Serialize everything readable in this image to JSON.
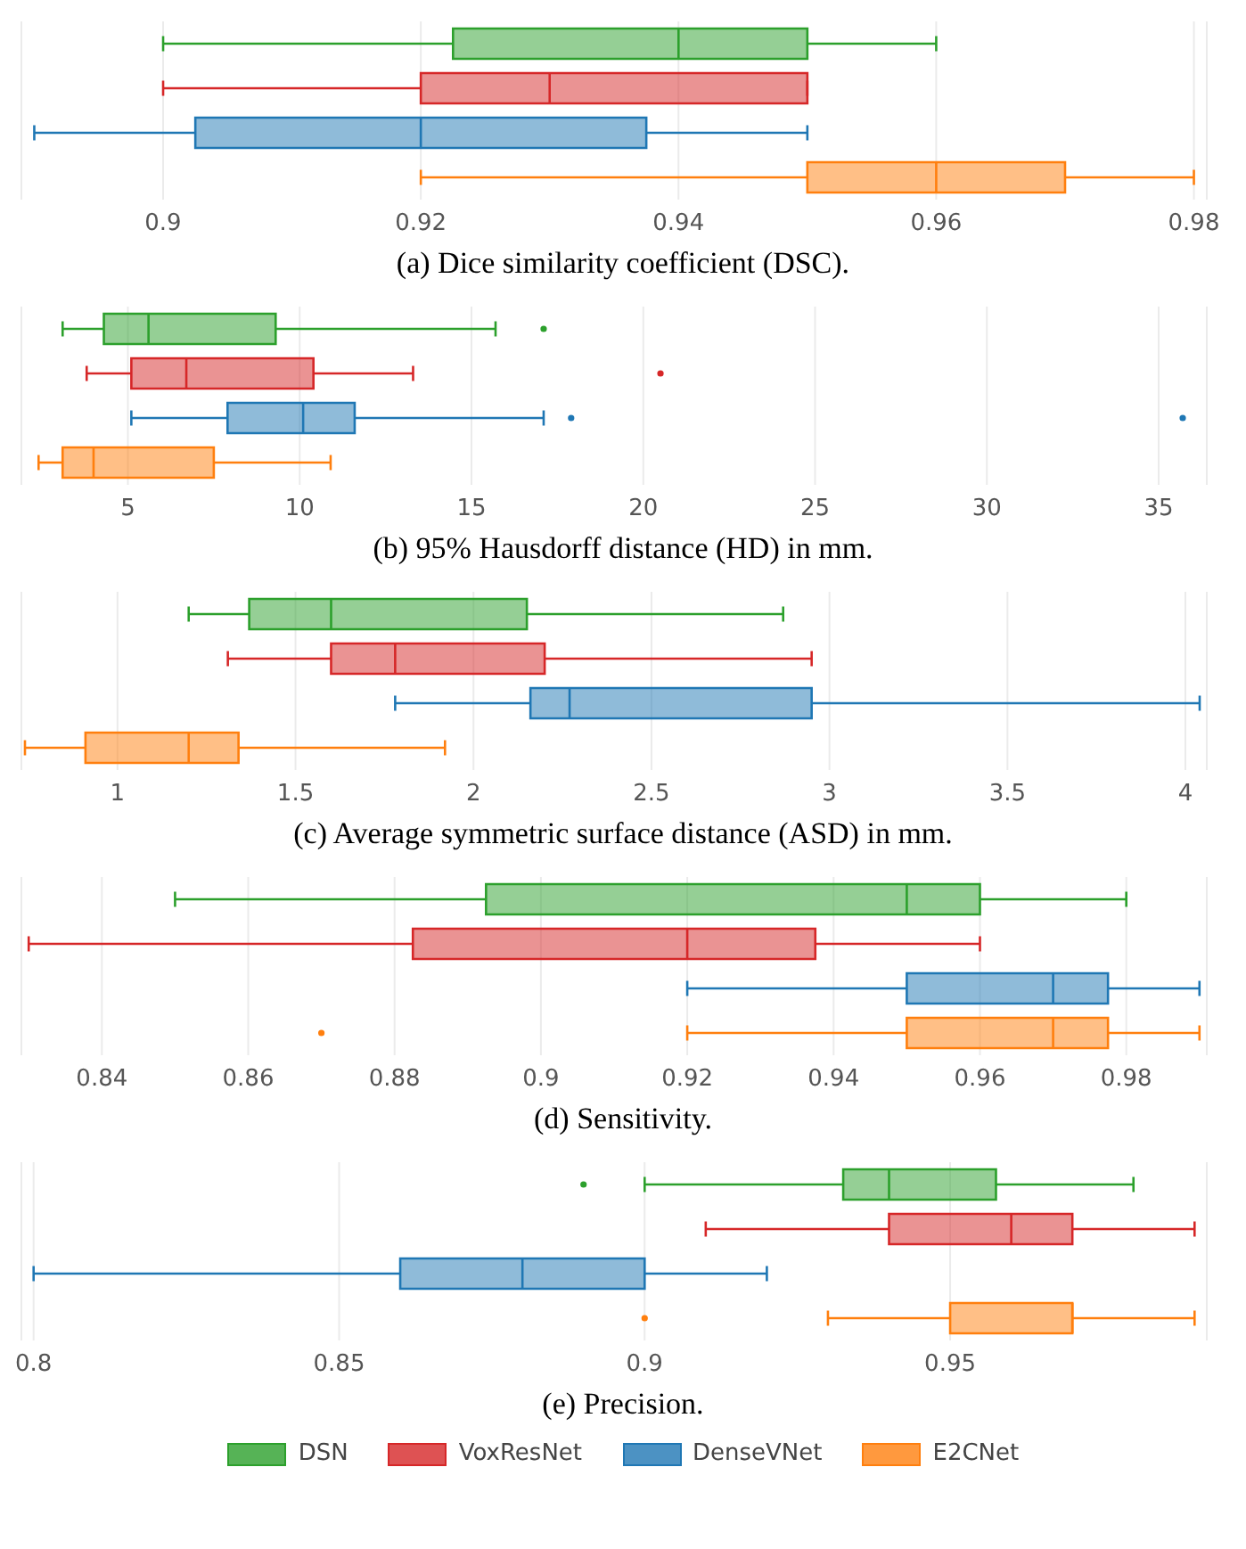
{
  "chart_data": [
    {
      "type": "box",
      "orientation": "horizontal",
      "categories": [
        null
      ],
      "annotations": [
        "(a) Dice similarity coefficient (DSC)."
      ],
      "xlim": [
        0.889,
        0.981
      ],
      "xticks": [
        0.9,
        0.92,
        0.94,
        0.96,
        0.98
      ],
      "grid": "x",
      "legend": false,
      "series": [
        {
          "color": "#2ca02c",
          "boxes": [
            {
              "low": 0.9,
              "q1": 0.9225,
              "median": 0.94,
              "q3": 0.95,
              "high": 0.96
            }
          ]
        },
        {
          "color": "#d62728",
          "boxes": [
            {
              "low": 0.9,
              "q1": 0.92,
              "median": 0.93,
              "q3": 0.95,
              "high": 0.95
            }
          ]
        },
        {
          "color": "#1f77b4",
          "boxes": [
            {
              "low": 0.89,
              "q1": 0.9025,
              "median": 0.92,
              "q3": 0.9375,
              "high": 0.95
            }
          ]
        },
        {
          "color": "#ff7f0e",
          "boxes": [
            {
              "low": 0.92,
              "q1": 0.95,
              "median": 0.96,
              "q3": 0.97,
              "high": 0.98
            }
          ]
        }
      ]
    },
    {
      "type": "box",
      "orientation": "horizontal",
      "categories": [
        null
      ],
      "annotations": [
        "(b) 95% Hausdorff distance (HD) in mm."
      ],
      "xlim": [
        1.9,
        36.4
      ],
      "xticks": [
        5,
        10,
        15,
        20,
        25,
        30,
        35
      ],
      "grid": "x",
      "legend": false,
      "series": [
        {
          "color": "#2ca02c",
          "boxes": [
            {
              "low": 3.1,
              "q1": 4.3,
              "median": 5.6,
              "q3": 9.3,
              "high": 15.7,
              "outliers": [
                17.1
              ]
            }
          ]
        },
        {
          "color": "#d62728",
          "boxes": [
            {
              "low": 3.8,
              "q1": 5.1,
              "median": 6.7,
              "q3": 10.4,
              "high": 13.3,
              "outliers": [
                20.5
              ]
            }
          ]
        },
        {
          "color": "#1f77b4",
          "boxes": [
            {
              "low": 5.1,
              "q1": 7.9,
              "median": 10.1,
              "q3": 11.6,
              "high": 17.1,
              "outliers": [
                17.9,
                35.7
              ]
            }
          ]
        },
        {
          "color": "#ff7f0e",
          "boxes": [
            {
              "low": 2.4,
              "q1": 3.1,
              "median": 4.0,
              "q3": 7.5,
              "high": 10.9
            }
          ]
        }
      ]
    },
    {
      "type": "box",
      "orientation": "horizontal",
      "categories": [
        null
      ],
      "annotations": [
        "(c) Average symmetric surface distance (ASD) in mm."
      ],
      "xlim": [
        0.73,
        4.06
      ],
      "xticks": [
        1,
        1.5,
        2,
        2.5,
        3,
        3.5,
        4
      ],
      "grid": "x",
      "legend": false,
      "series": [
        {
          "color": "#2ca02c",
          "boxes": [
            {
              "low": 1.2,
              "q1": 1.37,
              "median": 1.6,
              "q3": 2.15,
              "high": 2.87
            }
          ]
        },
        {
          "color": "#d62728",
          "boxes": [
            {
              "low": 1.31,
              "q1": 1.6,
              "median": 1.78,
              "q3": 2.2,
              "high": 2.95
            }
          ]
        },
        {
          "color": "#1f77b4",
          "boxes": [
            {
              "low": 1.78,
              "q1": 2.16,
              "median": 2.27,
              "q3": 2.95,
              "high": 4.04
            }
          ]
        },
        {
          "color": "#ff7f0e",
          "boxes": [
            {
              "low": 0.74,
              "q1": 0.91,
              "median": 1.2,
              "q3": 1.34,
              "high": 1.92
            }
          ]
        }
      ]
    },
    {
      "type": "box",
      "orientation": "horizontal",
      "categories": [
        null
      ],
      "annotations": [
        "(d) Sensitivity."
      ],
      "xlim": [
        0.829,
        0.991
      ],
      "xticks": [
        0.84,
        0.86,
        0.88,
        0.9,
        0.92,
        0.94,
        0.96,
        0.98
      ],
      "grid": "x",
      "legend": false,
      "series": [
        {
          "color": "#2ca02c",
          "boxes": [
            {
              "low": 0.85,
              "q1": 0.8925,
              "median": 0.95,
              "q3": 0.96,
              "high": 0.98
            }
          ]
        },
        {
          "color": "#d62728",
          "boxes": [
            {
              "low": 0.83,
              "q1": 0.8825,
              "median": 0.92,
              "q3": 0.9375,
              "high": 0.96
            }
          ]
        },
        {
          "color": "#1f77b4",
          "boxes": [
            {
              "low": 0.92,
              "q1": 0.95,
              "median": 0.97,
              "q3": 0.9775,
              "high": 0.99
            }
          ]
        },
        {
          "color": "#ff7f0e",
          "boxes": [
            {
              "low": 0.92,
              "q1": 0.95,
              "median": 0.97,
              "q3": 0.9775,
              "high": 0.99,
              "outliers": [
                0.87
              ]
            }
          ]
        }
      ]
    },
    {
      "type": "box",
      "orientation": "horizontal",
      "categories": [
        null
      ],
      "annotations": [
        "(e) Precision."
      ],
      "xlim": [
        0.798,
        0.992
      ],
      "xticks": [
        0.8,
        0.85,
        0.9,
        0.95
      ],
      "grid": "x",
      "legend": "bottom",
      "series": [
        {
          "name": "DSN",
          "color": "#2ca02c",
          "boxes": [
            {
              "low": 0.9,
              "q1": 0.9325,
              "median": 0.94,
              "q3": 0.9575,
              "high": 0.98,
              "outliers": [
                0.89
              ]
            }
          ]
        },
        {
          "name": "VoxResNet",
          "color": "#d62728",
          "boxes": [
            {
              "low": 0.91,
              "q1": 0.94,
              "median": 0.96,
              "q3": 0.97,
              "high": 0.99
            }
          ]
        },
        {
          "name": "DenseVNet",
          "color": "#1f77b4",
          "boxes": [
            {
              "low": 0.8,
              "q1": 0.86,
              "median": 0.88,
              "q3": 0.9,
              "high": 0.92
            }
          ]
        },
        {
          "name": "E2CNet",
          "color": "#ff7f0e",
          "boxes": [
            {
              "low": 0.93,
              "q1": 0.95,
              "median": 0.97,
              "q3": 0.97,
              "high": 0.99,
              "outliers": [
                0.9
              ]
            }
          ]
        }
      ]
    }
  ]
}
